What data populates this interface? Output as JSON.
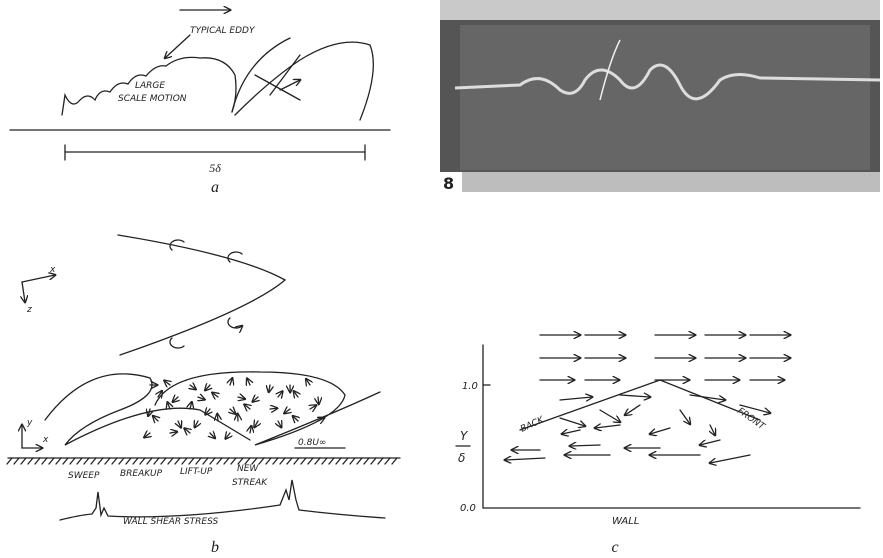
{
  "panel_a": {
    "typical_eddy": "TYPICAL EDDY",
    "large_scale_motion": [
      "LARGE",
      "SCALE MOTION"
    ],
    "scale_label": "5δ",
    "label": "a"
  },
  "photo": {
    "label": "8"
  },
  "panel_b": {
    "axes_top": {
      "x": "x",
      "z": "z"
    },
    "axes_side": {
      "y": "y",
      "x": "x"
    },
    "annotations": {
      "sweep": "SWEEP",
      "breakup": "BREAKUP",
      "lift_up": "LIFT-UP",
      "new_streak": [
        "NEW",
        "STREAK"
      ]
    },
    "velocity": "0.8U∞",
    "wall_shear": "WALL SHEAR STRESS",
    "label": "b"
  },
  "panel_c": {
    "ytick_top": "1.0",
    "ytick_bottom": "0.0",
    "ylabel": {
      "num": "Y",
      "den": "δ"
    },
    "back": "BACK",
    "front": "FRONT",
    "xlabel": "WALL",
    "label": "c"
  }
}
